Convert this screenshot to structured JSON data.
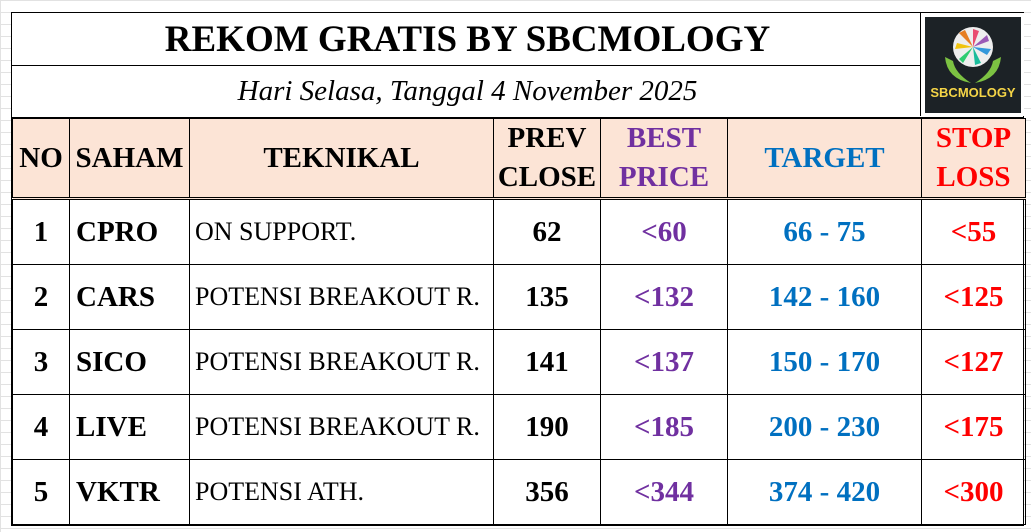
{
  "title": "REKOM GRATIS BY SBCMOLOGY",
  "date": "Hari Selasa, Tanggal 4 November 2025",
  "logo_text": "SBCMOLOGY",
  "colors": {
    "header_bg": "#fce4d6",
    "best_price": "#7030a0",
    "target": "#0070c0",
    "stop_loss": "#ff0000"
  },
  "headers": {
    "no": "NO",
    "saham": "SAHAM",
    "teknikal": "TEKNIKAL",
    "prev_1": "PREV",
    "prev_2": "CLOSE",
    "best_1": "BEST",
    "best_2": "PRICE",
    "target": "TARGET",
    "stop_1": "STOP",
    "stop_2": "LOSS"
  },
  "rows": [
    {
      "no": "1",
      "saham": "CPRO",
      "teknikal": "ON SUPPORT.",
      "prev": "62",
      "best": "<60",
      "target": "66 - 75",
      "stop": "<55"
    },
    {
      "no": "2",
      "saham": "CARS",
      "teknikal": "POTENSI BREAKOUT R.",
      "prev": "135",
      "best": "<132",
      "target": "142 - 160",
      "stop": "<125"
    },
    {
      "no": "3",
      "saham": "SICO",
      "teknikal": "POTENSI BREAKOUT R.",
      "prev": "141",
      "best": "<137",
      "target": "150 - 170",
      "stop": "<127"
    },
    {
      "no": "4",
      "saham": "LIVE",
      "teknikal": "POTENSI BREAKOUT R.",
      "prev": "190",
      "best": "<185",
      "target": "200 - 230",
      "stop": "<175"
    },
    {
      "no": "5",
      "saham": "VKTR",
      "teknikal": "POTENSI ATH.",
      "prev": "356",
      "best": "<344",
      "target": "374 - 420",
      "stop": "<300"
    }
  ]
}
